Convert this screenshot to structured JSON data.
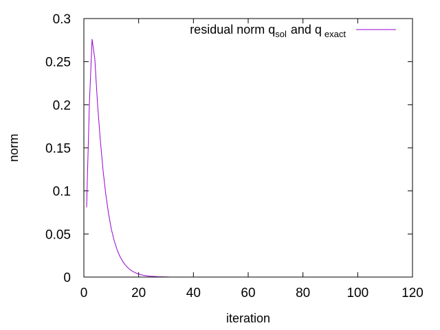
{
  "chart_data": {
    "type": "line",
    "xlabel": "iteration",
    "ylabel": "norm",
    "xlim": [
      0,
      120
    ],
    "ylim": [
      0,
      0.3
    ],
    "xticks": [
      "0",
      "20",
      "40",
      "60",
      "80",
      "100",
      "120"
    ],
    "yticks": [
      "0",
      "0.05",
      "0.1",
      "0.15",
      "0.2",
      "0.25",
      "0.3"
    ],
    "legend_position": "top-right",
    "grid": false,
    "series": [
      {
        "name": "residual norm q_sol and q_exact",
        "legend_parts": {
          "prefix": "residual norm q",
          "sub1": "sol",
          "middle": "and q",
          "sub2": "exact"
        },
        "color": "#9400d3",
        "x": [
          1,
          2,
          3,
          4,
          5,
          6,
          7,
          8,
          9,
          10,
          11,
          12,
          13,
          14,
          15,
          16,
          17,
          18,
          19,
          20,
          21,
          22,
          23,
          24,
          25,
          26,
          27,
          28,
          29,
          30,
          31
        ],
        "y": [
          0.081,
          0.2,
          0.276,
          0.253,
          0.2,
          0.159,
          0.124,
          0.096,
          0.074,
          0.056,
          0.043,
          0.033,
          0.025,
          0.019,
          0.0145,
          0.011,
          0.0083,
          0.0062,
          0.0047,
          0.0035,
          0.0026,
          0.0019,
          0.0014,
          0.001,
          0.0008,
          0.0006,
          0.0004,
          0.0003,
          0.0002,
          0.00015,
          0.0001
        ]
      }
    ]
  }
}
